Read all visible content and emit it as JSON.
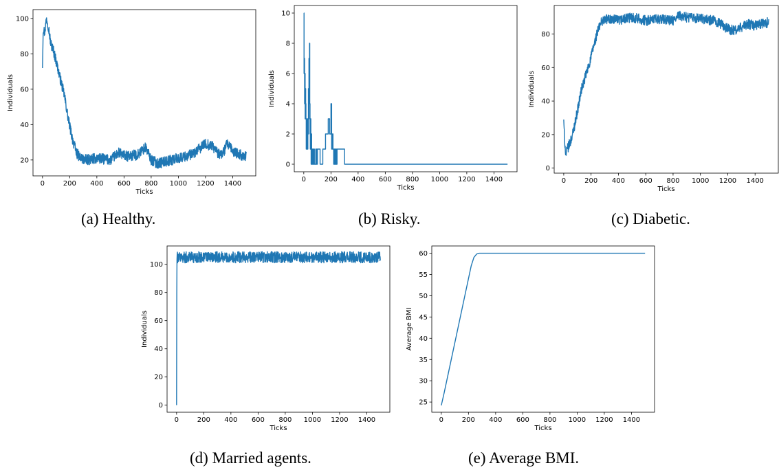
{
  "chart_data": [
    {
      "id": "a",
      "type": "line",
      "caption": "(a) Healthy.",
      "xlabel": "Ticks",
      "ylabel": "Individuals",
      "xlim": [
        -70,
        1570
      ],
      "ylim": [
        11,
        105
      ],
      "xticks": [
        0,
        200,
        400,
        600,
        800,
        1000,
        1200,
        1400
      ],
      "yticks": [
        20,
        40,
        60,
        80,
        100
      ],
      "color": "#1f77b4",
      "noise": 3,
      "x": [
        0,
        5,
        15,
        30,
        45,
        60,
        80,
        100,
        130,
        160,
        190,
        220,
        250,
        280,
        320,
        400,
        500,
        560,
        620,
        700,
        760,
        800,
        850,
        900,
        1000,
        1100,
        1150,
        1200,
        1250,
        1300,
        1330,
        1360,
        1400,
        1450,
        1500
      ],
      "y": [
        72,
        95,
        92,
        100,
        95,
        86,
        82,
        76,
        66,
        57,
        43,
        32,
        24,
        21,
        20,
        21,
        20,
        24,
        22,
        23,
        27,
        20,
        18,
        19,
        21,
        23,
        26,
        29,
        28,
        23,
        24,
        29,
        25,
        23,
        22
      ]
    },
    {
      "id": "b",
      "type": "line",
      "caption": "(b) Risky.",
      "xlabel": "Ticks",
      "ylabel": "Individuals",
      "xlim": [
        -70,
        1570
      ],
      "ylim": [
        -0.5,
        10.5
      ],
      "xticks": [
        0,
        200,
        400,
        600,
        800,
        1000,
        1200,
        1400
      ],
      "yticks": [
        0,
        2,
        4,
        6,
        8,
        10
      ],
      "color": "#1f77b4",
      "noise": 0,
      "x": [
        0,
        2,
        4,
        6,
        8,
        10,
        12,
        14,
        16,
        18,
        20,
        22,
        24,
        26,
        28,
        30,
        32,
        34,
        36,
        38,
        40,
        42,
        44,
        46,
        48,
        50,
        52,
        54,
        56,
        58,
        60,
        62,
        64,
        66,
        68,
        70,
        72,
        74,
        76,
        78,
        80,
        82,
        84,
        86,
        88,
        90,
        92,
        94,
        96,
        100,
        110,
        120,
        140,
        160,
        180,
        190,
        200,
        205,
        210,
        215,
        220,
        225,
        230,
        235,
        240,
        245,
        250,
        260,
        280,
        300,
        1500
      ],
      "y": [
        10,
        6,
        7,
        4,
        6,
        3,
        5,
        4,
        3,
        1,
        2,
        3,
        1,
        2,
        1,
        3,
        2,
        5,
        3,
        7,
        6,
        8,
        4,
        2,
        1,
        3,
        1,
        0,
        2,
        1,
        0,
        1,
        0,
        0,
        1,
        0,
        0,
        0,
        1,
        0,
        0,
        0,
        0,
        0,
        1,
        0,
        0,
        1,
        0,
        1,
        1,
        0,
        1,
        2,
        3,
        2,
        4,
        1,
        2,
        1,
        0,
        1,
        0,
        1,
        0,
        1,
        1,
        1,
        1,
        0,
        0
      ]
    },
    {
      "id": "c",
      "type": "line",
      "caption": "(c) Diabetic.",
      "xlabel": "Ticks",
      "ylabel": "Individuals",
      "xlim": [
        -70,
        1570
      ],
      "ylim": [
        -3,
        97
      ],
      "xticks": [
        0,
        200,
        400,
        600,
        800,
        1000,
        1200,
        1400
      ],
      "yticks": [
        0,
        20,
        40,
        60,
        80
      ],
      "color": "#1f77b4",
      "noise": 3,
      "x": [
        0,
        5,
        15,
        30,
        50,
        70,
        100,
        130,
        160,
        190,
        220,
        250,
        280,
        320,
        400,
        500,
        600,
        700,
        800,
        850,
        900,
        1000,
        1100,
        1150,
        1200,
        1250,
        1300,
        1350,
        1400,
        1450,
        1500
      ],
      "y": [
        29,
        19,
        8,
        12,
        16,
        22,
        34,
        47,
        55,
        63,
        73,
        82,
        88,
        89,
        88,
        90,
        88,
        89,
        88,
        91,
        90,
        89,
        88,
        86,
        83,
        82,
        84,
        86,
        85,
        86,
        87
      ]
    },
    {
      "id": "d",
      "type": "line",
      "caption": "(d) Married agents.",
      "xlabel": "Ticks",
      "ylabel": "Individuals",
      "xlim": [
        -70,
        1570
      ],
      "ylim": [
        -5,
        113
      ],
      "xticks": [
        0,
        200,
        400,
        600,
        800,
        1000,
        1200,
        1400
      ],
      "yticks": [
        0,
        20,
        40,
        60,
        80,
        100
      ],
      "color": "#1f77b4",
      "noise": 4,
      "x": [
        0,
        2,
        5,
        50,
        200,
        400,
        600,
        800,
        1000,
        1200,
        1400,
        1500
      ],
      "y": [
        0,
        105,
        105,
        105,
        105,
        105,
        105,
        105,
        105,
        105,
        105,
        105
      ]
    },
    {
      "id": "e",
      "type": "line",
      "caption": "(e) Average BMI.",
      "xlabel": "Ticks",
      "ylabel": "Average BMI",
      "xlim": [
        -70,
        1570
      ],
      "ylim": [
        22.6,
        61.7
      ],
      "xticks": [
        0,
        200,
        400,
        600,
        800,
        1000,
        1200,
        1400
      ],
      "yticks": [
        25,
        30,
        35,
        40,
        45,
        50,
        55,
        60
      ],
      "color": "#1f77b4",
      "noise": 0,
      "x": [
        0,
        20,
        50,
        80,
        110,
        140,
        170,
        200,
        220,
        240,
        260,
        280,
        320,
        400,
        600,
        800,
        1000,
        1200,
        1400,
        1500
      ],
      "y": [
        24.2,
        27,
        31.5,
        36,
        40.5,
        45,
        49.5,
        54,
        57,
        59,
        59.8,
        60,
        60,
        60,
        60,
        60,
        60,
        60,
        60,
        60
      ]
    }
  ]
}
